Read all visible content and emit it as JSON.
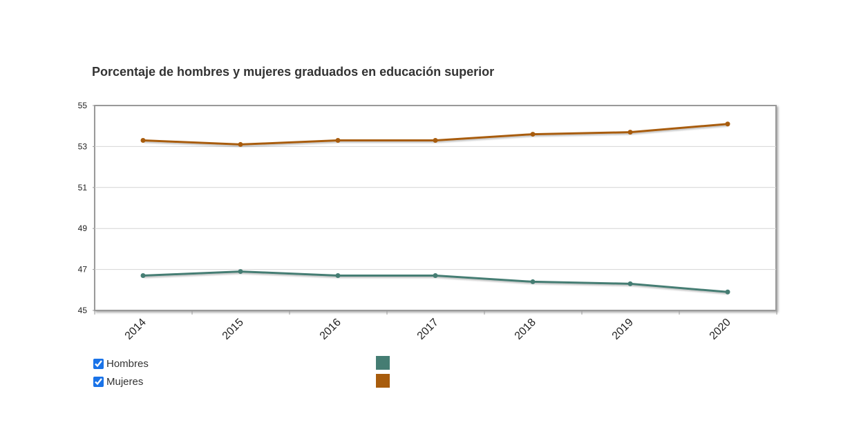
{
  "chart_data": {
    "type": "line",
    "title": "Porcentaje de hombres y mujeres graduados en educación superior",
    "xlabel": "",
    "ylabel": "",
    "categories": [
      "2014",
      "2015",
      "2016",
      "2017",
      "2018",
      "2019",
      "2020"
    ],
    "ylim": [
      45,
      55
    ],
    "yticks": [
      "55",
      "53",
      "51",
      "49",
      "47",
      "45"
    ],
    "grid": true,
    "legend_position": "bottom-left",
    "series": [
      {
        "name": "Hombres",
        "color": "#457d73",
        "values": [
          46.7,
          46.9,
          46.7,
          46.7,
          46.4,
          46.3,
          45.9
        ],
        "checked": true
      },
      {
        "name": "Mujeres",
        "color": "#a85c0d",
        "values": [
          53.3,
          53.1,
          53.3,
          53.3,
          53.6,
          53.7,
          54.1
        ],
        "checked": true
      }
    ]
  }
}
